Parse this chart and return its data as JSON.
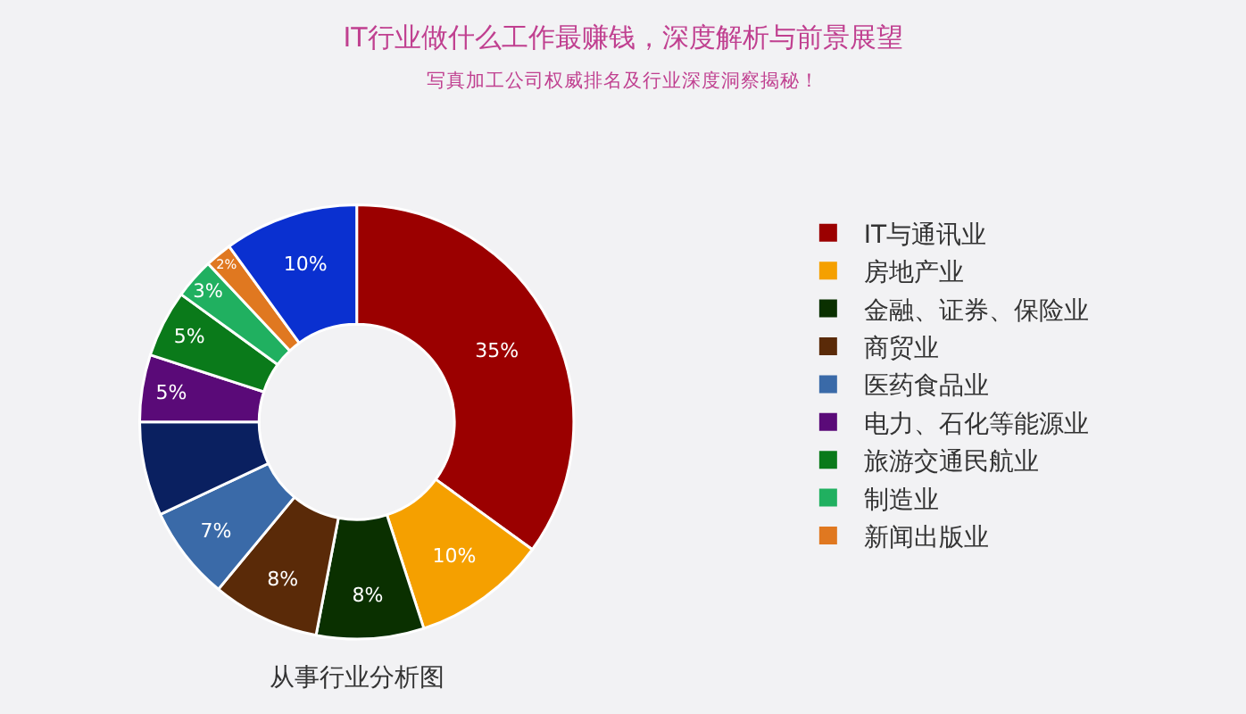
{
  "chart_data": {
    "type": "donut",
    "title": "IT行业做什么工作最赚钱，深度解析与前景展望",
    "subtitle": "写真加工公司权威排名及行业深度洞察揭秘！",
    "annotations": [
      "从事行业分析图"
    ],
    "categories": [
      "IT与通讯业",
      "房地产业",
      "金融、证券、保险业",
      "商贸业",
      "医药食品业",
      null,
      "电力、石化等能源业",
      "旅游交通民航业",
      "制造业",
      "新闻出版业",
      null
    ],
    "values": [
      35,
      10,
      8,
      8,
      7,
      7,
      5,
      5,
      3,
      2,
      10
    ],
    "value_labels": [
      "35%",
      "10%",
      "8%",
      "8%",
      "7%",
      null,
      "5%",
      "5%",
      "3%",
      "2%",
      "10%"
    ],
    "colors": [
      "#9b0000",
      "#f5a000",
      "#0a3000",
      "#5a2a08",
      "#3a6aa8",
      "#0a2060",
      "#5a0a78",
      "#0a7a1a",
      "#20b060",
      "#e07820",
      "#0a30d0"
    ],
    "legend": "right"
  }
}
